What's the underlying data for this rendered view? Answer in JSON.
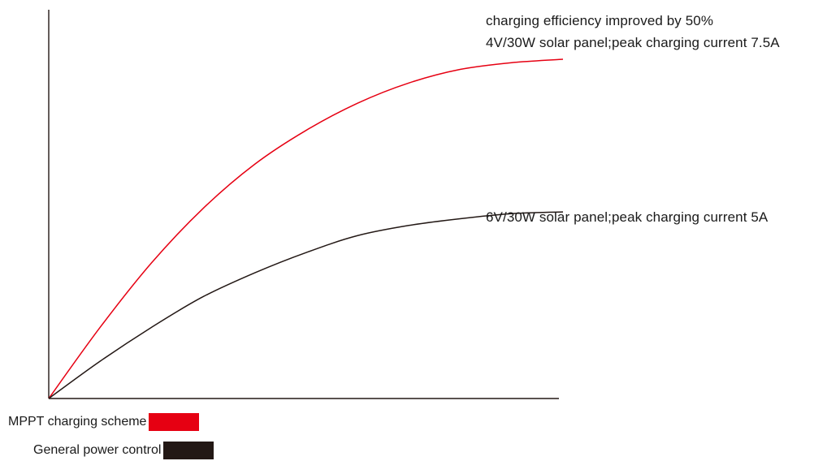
{
  "chart_data": {
    "type": "line",
    "title": "",
    "xlabel": "",
    "ylabel": "",
    "xlim": [
      0,
      1
    ],
    "ylim": [
      0,
      1
    ],
    "grid": false,
    "legend_placement": "bottom-left",
    "series": [
      {
        "name": "MPPT charging scheme",
        "color": "#e60012",
        "x": [
          0,
          0.1,
          0.2,
          0.3,
          0.4,
          0.5,
          0.6,
          0.7,
          0.8,
          0.9,
          1.0
        ],
        "y": [
          0,
          0.21,
          0.4,
          0.56,
          0.69,
          0.79,
          0.87,
          0.93,
          0.97,
          0.99,
          1.0
        ]
      },
      {
        "name": "General power control",
        "color": "#231815",
        "x": [
          0,
          0.1,
          0.2,
          0.3,
          0.4,
          0.5,
          0.6,
          0.7,
          0.8,
          0.9,
          1.0
        ],
        "y": [
          0,
          0.11,
          0.21,
          0.3,
          0.37,
          0.43,
          0.48,
          0.51,
          0.53,
          0.545,
          0.55
        ]
      }
    ],
    "annotations": [
      "charging efficiency improved by 50%",
      "4V/30W solar panel;peak charging current 7.5A",
      "6V/30W solar panel;peak charging current 5A"
    ]
  }
}
